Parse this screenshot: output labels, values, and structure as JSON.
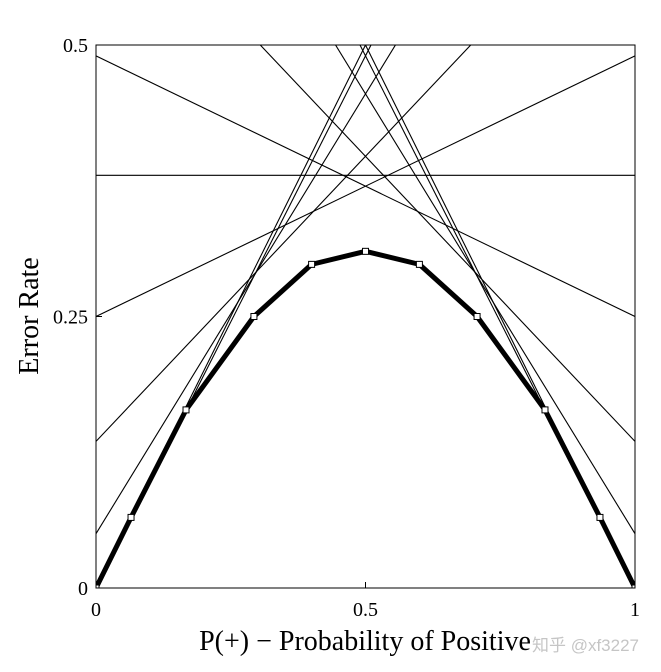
{
  "chart_data": {
    "type": "line",
    "xlabel": "P(+) − Probability of Positive",
    "ylabel": "Error Rate",
    "xlim": [
      0,
      1
    ],
    "ylim": [
      0,
      0.5
    ],
    "x_ticks": [
      "0",
      "0.5",
      "1"
    ],
    "y_ticks": [
      "0",
      "0.25",
      "0.5"
    ],
    "grid": false,
    "cost_lines": [
      {
        "y0": 0.0,
        "y1": 1.0
      },
      {
        "y0": 0.0,
        "y1": 0.98
      },
      {
        "y0": 0.05,
        "y1": 0.86
      },
      {
        "y0": 0.135,
        "y1": 0.66
      },
      {
        "y0": 0.25,
        "y1": 0.49
      },
      {
        "y0": 0.38,
        "y1": 0.38
      },
      {
        "y0": 0.49,
        "y1": 0.25
      },
      {
        "y0": 0.66,
        "y1": 0.135
      },
      {
        "y0": 0.86,
        "y1": 0.05
      },
      {
        "y0": 0.98,
        "y1": 0.0
      },
      {
        "y0": 1.0,
        "y1": 0.0
      }
    ],
    "lower_envelope": {
      "x": [
        0.0,
        0.065,
        0.167,
        0.293,
        0.4,
        0.5,
        0.6,
        0.707,
        0.833,
        0.935,
        1.0
      ],
      "y": [
        0.0,
        0.065,
        0.164,
        0.25,
        0.298,
        0.31,
        0.298,
        0.25,
        0.164,
        0.065,
        0.0
      ]
    }
  },
  "watermark": "知乎 @xf3227"
}
